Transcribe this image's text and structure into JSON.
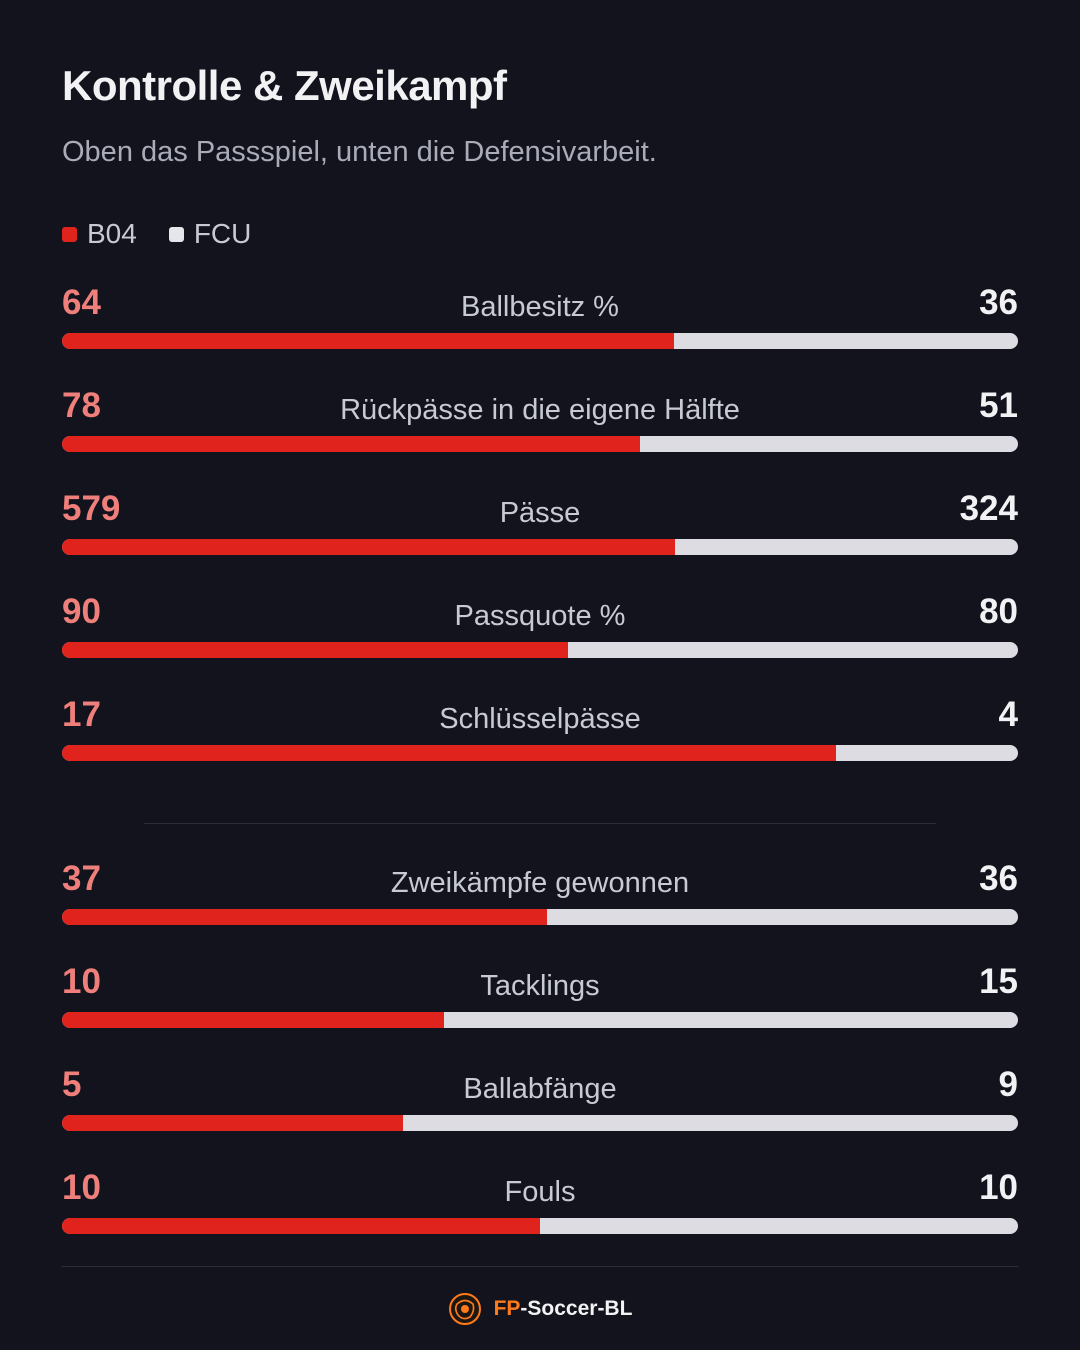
{
  "title": "Kontrolle & Zweikampf",
  "subtitle": "Oben das Passspiel, unten die Defensivarbeit.",
  "colors": {
    "home": "#e0231d",
    "away": "#dcdce2",
    "background": "#12131c",
    "brand": "#ff7a1a"
  },
  "legend": [
    {
      "label": "B04",
      "color": "#e0231d"
    },
    {
      "label": "FCU",
      "color": "#e6e6ea"
    }
  ],
  "chart_data": {
    "type": "bar",
    "orientation": "horizontal-stacked-share",
    "series": [
      {
        "name": "B04"
      },
      {
        "name": "FCU"
      }
    ],
    "groups": [
      {
        "rows": [
          {
            "label": "Ballbesitz %",
            "home": 64,
            "away": 36
          },
          {
            "label": "Rückpässe in die eigene Hälfte",
            "home": 78,
            "away": 51
          },
          {
            "label": "Pässe",
            "home": 579,
            "away": 324
          },
          {
            "label": "Passquote %",
            "home": 90,
            "away": 80
          },
          {
            "label": "Schlüsselpässe",
            "home": 17,
            "away": 4
          }
        ]
      },
      {
        "rows": [
          {
            "label": "Zweikämpfe gewonnen",
            "home": 37,
            "away": 36
          },
          {
            "label": "Tacklings",
            "home": 10,
            "away": 15
          },
          {
            "label": "Ballabfänge",
            "home": 5,
            "away": 9
          },
          {
            "label": "Fouls",
            "home": 10,
            "away": 10
          }
        ]
      }
    ]
  },
  "footer": {
    "brand_accent": "FP",
    "brand_rest": "-Soccer-BL",
    "logo_icon": "soccer-ball-logo-icon"
  }
}
